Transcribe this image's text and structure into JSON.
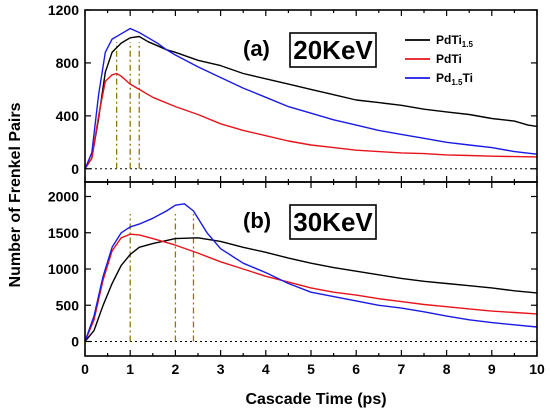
{
  "chart_data": {
    "type": "line",
    "xlabel": "Cascade Time (ps)",
    "ylabel": "Number of Frenkel Pairs",
    "xlim": [
      0,
      10
    ],
    "xticks": [
      0,
      1,
      2,
      3,
      4,
      5,
      6,
      7,
      8,
      9,
      10
    ],
    "legend": {
      "placement": "top-right",
      "entries": [
        {
          "base": "PdTi",
          "sub": "1.5",
          "after": "",
          "color": "#000000"
        },
        {
          "base": "PdTi",
          "sub": "",
          "after": "",
          "color": "#e8141b"
        },
        {
          "base": "Pd",
          "sub": "1.5",
          "after": "Ti",
          "color": "#1a1ae6"
        }
      ]
    },
    "panels": [
      {
        "label": "(a)",
        "energy": "20KeV",
        "ylim": [
          -100,
          1200
        ],
        "yticks": [
          "0",
          "400",
          "800",
          "1200"
        ],
        "ytick_values": [
          0,
          400,
          800,
          1200
        ],
        "peak_markers_x": [
          0.7,
          1.0,
          1.2
        ],
        "series": [
          {
            "name": "PdTi1.5",
            "color": "#000000",
            "x": [
              0,
              0.15,
              0.3,
              0.45,
              0.6,
              0.8,
              1.0,
              1.2,
              1.4,
              1.6,
              1.8,
              2,
              2.5,
              3,
              3.5,
              4,
              4.5,
              5,
              5.5,
              6,
              6.5,
              7,
              7.5,
              8,
              8.5,
              9,
              9.5,
              9.8,
              10
            ],
            "y": [
              0,
              80,
              380,
              730,
              880,
              950,
              990,
              1000,
              960,
              930,
              900,
              880,
              820,
              780,
              720,
              680,
              640,
              600,
              560,
              520,
              500,
              480,
              450,
              430,
              410,
              380,
              360,
              330,
              320
            ]
          },
          {
            "name": "PdTi",
            "color": "#e8141b",
            "x": [
              0,
              0.15,
              0.3,
              0.45,
              0.6,
              0.7,
              0.8,
              1.0,
              1.2,
              1.5,
              2,
              2.5,
              3,
              3.5,
              4,
              4.5,
              5,
              5.5,
              6,
              6.5,
              7,
              7.5,
              8,
              8.5,
              9,
              9.5,
              10
            ],
            "y": [
              0,
              80,
              400,
              660,
              710,
              720,
              700,
              640,
              600,
              540,
              470,
              410,
              340,
              290,
              250,
              210,
              180,
              160,
              140,
              130,
              120,
              115,
              105,
              100,
              95,
              92,
              90
            ]
          },
          {
            "name": "Pd1.5Ti",
            "color": "#1a1ae6",
            "x": [
              0,
              0.15,
              0.3,
              0.45,
              0.6,
              0.8,
              1.0,
              1.2,
              1.4,
              1.6,
              1.8,
              2,
              2.5,
              3,
              3.5,
              4,
              4.5,
              5,
              5.5,
              6,
              6.5,
              7,
              7.5,
              8,
              8.5,
              9,
              9.5,
              10
            ],
            "y": [
              0,
              120,
              560,
              880,
              980,
              1020,
              1060,
              1030,
              990,
              950,
              900,
              860,
              770,
              690,
              610,
              540,
              470,
              420,
              370,
              330,
              290,
              260,
              230,
              200,
              180,
              160,
              130,
              110
            ]
          }
        ]
      },
      {
        "label": "(b)",
        "energy": "30KeV",
        "ylim": [
          -200,
          2200
        ],
        "yticks": [
          "0",
          "500",
          "1000",
          "1500",
          "2000"
        ],
        "ytick_values": [
          0,
          500,
          1000,
          1500,
          2000
        ],
        "peak_markers_x": [
          1.0,
          2.0,
          2.4
        ],
        "series": [
          {
            "name": "PdTi1.5",
            "color": "#000000",
            "x": [
              0,
              0.2,
              0.4,
              0.6,
              0.8,
              1.0,
              1.2,
              1.5,
              2,
              2.5,
              3,
              3.5,
              4,
              4.5,
              5,
              5.5,
              6,
              6.5,
              7,
              7.5,
              8,
              8.5,
              9,
              9.5,
              10
            ],
            "y": [
              0,
              150,
              500,
              800,
              1050,
              1200,
              1300,
              1350,
              1420,
              1430,
              1380,
              1300,
              1230,
              1150,
              1080,
              1020,
              970,
              920,
              870,
              830,
              800,
              770,
              740,
              700,
              670
            ]
          },
          {
            "name": "PdTi",
            "color": "#e8141b",
            "x": [
              0,
              0.2,
              0.4,
              0.6,
              0.8,
              1.0,
              1.2,
              1.5,
              2,
              2.5,
              3,
              3.5,
              4,
              4.5,
              5,
              5.5,
              6,
              6.5,
              7,
              7.5,
              8,
              8.5,
              9,
              9.5,
              10
            ],
            "y": [
              0,
              300,
              850,
              1250,
              1430,
              1480,
              1470,
              1420,
              1330,
              1220,
              1100,
              1000,
              900,
              820,
              740,
              680,
              640,
              590,
              550,
              510,
              480,
              450,
              420,
              400,
              380
            ]
          },
          {
            "name": "Pd1.5Ti",
            "color": "#1a1ae6",
            "x": [
              0,
              0.2,
              0.4,
              0.6,
              0.8,
              1.0,
              1.2,
              1.5,
              1.8,
              2.0,
              2.2,
              2.4,
              2.7,
              3,
              3.5,
              4,
              4.5,
              5,
              5.5,
              6,
              6.5,
              7,
              7.5,
              8,
              8.5,
              9,
              9.5,
              10
            ],
            "y": [
              0,
              350,
              900,
              1300,
              1500,
              1580,
              1620,
              1700,
              1800,
              1880,
              1900,
              1800,
              1500,
              1280,
              1080,
              950,
              800,
              680,
              620,
              560,
              500,
              460,
              410,
              350,
              300,
              260,
              230,
              200
            ]
          }
        ]
      }
    ]
  }
}
